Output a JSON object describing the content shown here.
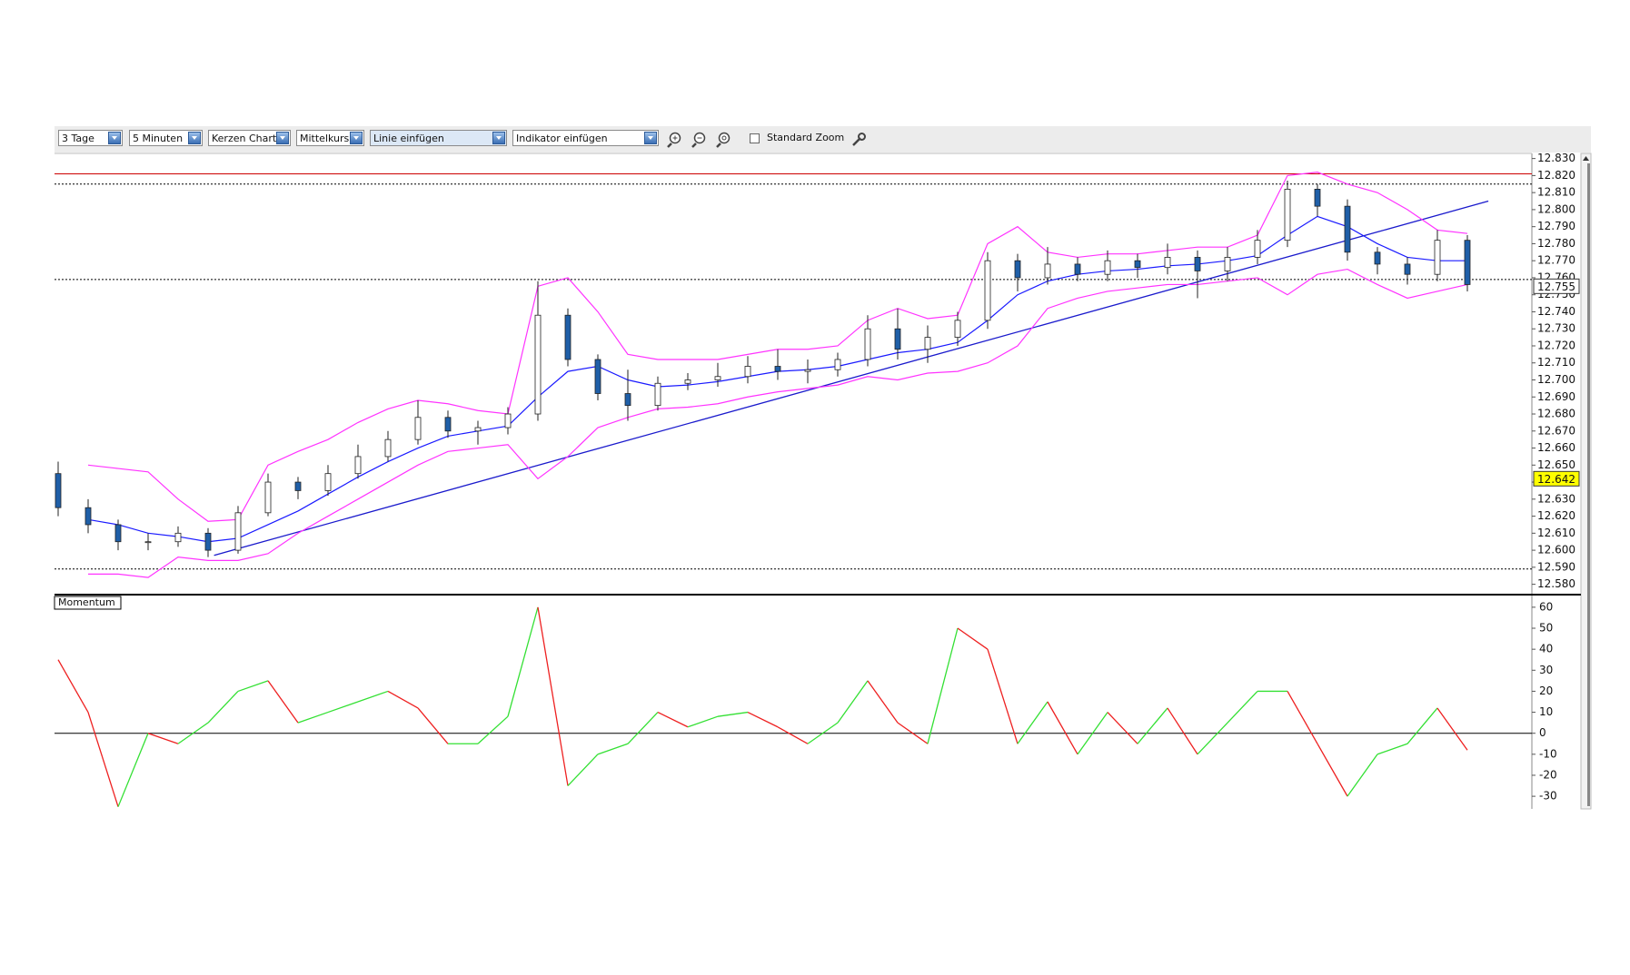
{
  "toolbar": {
    "period": "3 Tage",
    "interval": "5 Minuten",
    "chart_type": "Kerzen Chart",
    "price_type": "Mittelkurs",
    "line": "Linie einfügen",
    "indicator": "Indikator einfügen",
    "zoom": "Standard Zoom"
  },
  "chart_data": [
    {
      "type": "candlestick",
      "open": [
        12.645,
        12.625,
        12.615,
        12.605,
        12.605,
        12.61,
        12.6,
        12.622,
        12.64,
        12.635,
        12.645,
        12.655,
        12.665,
        12.678,
        12.67,
        12.672,
        12.68,
        12.738,
        12.712,
        12.692,
        12.685,
        12.698,
        12.7,
        12.702,
        12.708,
        12.705,
        12.706,
        12.712,
        12.73,
        12.718,
        12.725,
        12.735,
        12.77,
        12.76,
        12.768,
        12.762,
        12.77,
        12.766,
        12.772,
        12.764,
        12.772,
        12.782,
        12.812,
        12.802,
        12.775,
        12.768,
        12.762,
        12.782
      ],
      "high": [
        12.652,
        12.63,
        12.618,
        12.61,
        12.614,
        12.613,
        12.626,
        12.645,
        12.643,
        12.65,
        12.662,
        12.67,
        12.688,
        12.682,
        12.676,
        12.684,
        12.758,
        12.742,
        12.715,
        12.706,
        12.702,
        12.704,
        12.71,
        12.714,
        12.718,
        12.712,
        12.716,
        12.738,
        12.742,
        12.732,
        12.74,
        12.775,
        12.774,
        12.778,
        12.772,
        12.776,
        12.774,
        12.78,
        12.776,
        12.778,
        12.788,
        12.817,
        12.815,
        12.806,
        12.778,
        12.772,
        12.788,
        12.785
      ],
      "low": [
        12.62,
        12.61,
        12.6,
        12.6,
        12.602,
        12.596,
        12.598,
        12.62,
        12.63,
        12.632,
        12.642,
        12.652,
        12.662,
        12.666,
        12.662,
        12.668,
        12.676,
        12.708,
        12.688,
        12.676,
        12.682,
        12.694,
        12.696,
        12.698,
        12.7,
        12.698,
        12.702,
        12.708,
        12.712,
        12.71,
        12.72,
        12.73,
        12.752,
        12.756,
        12.758,
        12.758,
        12.76,
        12.762,
        12.748,
        12.758,
        12.768,
        12.778,
        12.796,
        12.77,
        12.762,
        12.756,
        12.758,
        12.752
      ],
      "close": [
        12.625,
        12.615,
        12.605,
        12.605,
        12.61,
        12.6,
        12.622,
        12.64,
        12.635,
        12.645,
        12.655,
        12.665,
        12.678,
        12.67,
        12.672,
        12.68,
        12.738,
        12.712,
        12.692,
        12.685,
        12.698,
        12.7,
        12.702,
        12.708,
        12.705,
        12.706,
        12.712,
        12.73,
        12.718,
        12.725,
        12.735,
        12.77,
        12.76,
        12.768,
        12.762,
        12.77,
        12.766,
        12.772,
        12.764,
        12.772,
        12.782,
        12.812,
        12.802,
        12.775,
        12.768,
        12.762,
        12.782,
        12.756
      ],
      "up_color": "#ffffff",
      "down_color": "#1f5fa8",
      "bands": [
        {
          "color": "#ff33ff",
          "values": [
            null,
            12.65,
            12.648,
            12.646,
            12.63,
            12.617,
            12.618,
            12.65,
            12.658,
            12.665,
            12.675,
            12.683,
            12.688,
            12.686,
            12.682,
            12.68,
            12.755,
            12.76,
            12.74,
            12.715,
            12.712,
            12.712,
            12.712,
            12.715,
            12.718,
            12.718,
            12.72,
            12.735,
            12.742,
            12.736,
            12.738,
            12.78,
            12.79,
            12.775,
            12.772,
            12.774,
            12.774,
            12.776,
            12.778,
            12.778,
            12.785,
            12.82,
            12.822,
            12.815,
            12.81,
            12.8,
            12.788,
            12.786
          ]
        },
        {
          "color": "#1a1aff",
          "values": [
            null,
            12.618,
            12.615,
            12.61,
            12.608,
            12.605,
            12.607,
            12.615,
            12.623,
            12.633,
            12.643,
            12.652,
            12.66,
            12.667,
            12.67,
            12.673,
            12.69,
            12.705,
            12.708,
            12.7,
            12.696,
            12.697,
            12.699,
            12.702,
            12.705,
            12.706,
            12.708,
            12.712,
            12.716,
            12.718,
            12.722,
            12.735,
            12.75,
            12.758,
            12.762,
            12.764,
            12.765,
            12.767,
            12.768,
            12.77,
            12.773,
            12.785,
            12.796,
            12.79,
            12.78,
            12.772,
            12.77,
            12.77
          ]
        },
        {
          "color": "#ff33ff",
          "values": [
            null,
            12.586,
            12.586,
            12.584,
            12.596,
            12.594,
            12.594,
            12.598,
            12.61,
            12.62,
            12.63,
            12.64,
            12.65,
            12.658,
            12.66,
            12.662,
            12.642,
            12.655,
            12.672,
            12.678,
            12.683,
            12.684,
            12.686,
            12.69,
            12.693,
            12.695,
            12.697,
            12.702,
            12.7,
            12.704,
            12.705,
            12.71,
            12.72,
            12.742,
            12.748,
            12.752,
            12.754,
            12.756,
            12.756,
            12.758,
            12.76,
            12.75,
            12.762,
            12.765,
            12.756,
            12.748,
            12.752,
            12.756
          ]
        }
      ],
      "trendline": {
        "color": "#1a1acc",
        "start": [
          5.2,
          12.597
        ],
        "end": [
          47.7,
          12.805
        ]
      },
      "hlines": [
        {
          "value": 12.821,
          "color": "#cc0000",
          "style": "solid"
        },
        {
          "value": 12.815,
          "color": "#000000",
          "style": "dotted"
        },
        {
          "value": 12.759,
          "color": "#000000",
          "style": "dotted"
        },
        {
          "value": 12.589,
          "color": "#000000",
          "style": "dotted"
        }
      ],
      "markers": [
        {
          "value": 12.755,
          "color": "#ffffff"
        },
        {
          "value": 12.642,
          "color": "#ffff00"
        }
      ],
      "ylim": [
        12.575,
        12.833
      ],
      "yticks": [
        {
          "value": 12.58,
          "label": "12.580"
        },
        {
          "value": 12.59,
          "label": "12.590"
        },
        {
          "value": 12.6,
          "label": "12.600"
        },
        {
          "value": 12.61,
          "label": "12.610"
        },
        {
          "value": 12.62,
          "label": "12.620"
        },
        {
          "value": 12.63,
          "label": "12.630"
        },
        {
          "value": 12.64,
          "label": "12.640"
        },
        {
          "value": 12.65,
          "label": "12.650"
        },
        {
          "value": 12.66,
          "label": "12.660"
        },
        {
          "value": 12.67,
          "label": "12.670"
        },
        {
          "value": 12.68,
          "label": "12.680"
        },
        {
          "value": 12.69,
          "label": "12.690"
        },
        {
          "value": 12.7,
          "label": "12.700"
        },
        {
          "value": 12.71,
          "label": "12.710"
        },
        {
          "value": 12.72,
          "label": "12.720"
        },
        {
          "value": 12.73,
          "label": "12.730"
        },
        {
          "value": 12.74,
          "label": "12.740"
        },
        {
          "value": 12.75,
          "label": "12.750"
        },
        {
          "value": 12.76,
          "label": "12.760"
        },
        {
          "value": 12.77,
          "label": "12.770"
        },
        {
          "value": 12.78,
          "label": "12.780"
        },
        {
          "value": 12.79,
          "label": "12.790"
        },
        {
          "value": 12.8,
          "label": "12.800"
        },
        {
          "value": 12.81,
          "label": "12.810"
        },
        {
          "value": 12.82,
          "label": "12.820"
        },
        {
          "value": 12.83,
          "label": "12.830"
        }
      ]
    },
    {
      "type": "line",
      "title": "Momentum",
      "values": [
        35,
        10,
        -35,
        0,
        -5,
        5,
        20,
        25,
        5,
        10,
        15,
        20,
        12,
        -5,
        -5,
        8,
        60,
        -25,
        -10,
        -5,
        10,
        3,
        8,
        10,
        3,
        -5,
        5,
        25,
        5,
        -5,
        50,
        40,
        -5,
        15,
        -10,
        10,
        -5,
        12,
        -10,
        5,
        20,
        20,
        -5,
        -30,
        -10,
        -5,
        12,
        -8
      ],
      "rising_color": "#33e033",
      "falling_color": "#ee2020",
      "reference_line": 0,
      "ylim": [
        -36,
        66
      ],
      "yticks": [
        60,
        50,
        40,
        30,
        20,
        10,
        0,
        -10,
        -20,
        -30
      ]
    }
  ]
}
